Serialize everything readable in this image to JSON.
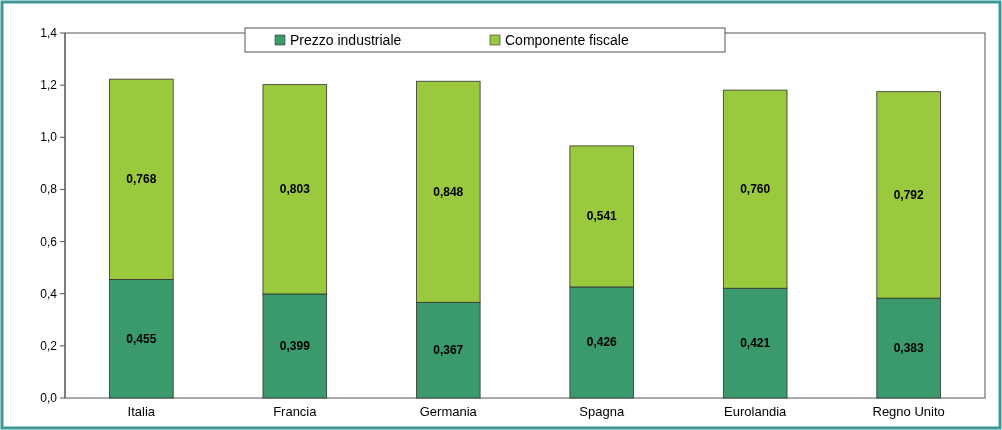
{
  "chart_data": {
    "type": "bar",
    "stacked": true,
    "categories": [
      "Italia",
      "Francia",
      "Germania",
      "Spagna",
      "Eurolandia",
      "Regno Unito"
    ],
    "series": [
      {
        "name": "Prezzo industriale",
        "color": "#3a9a6c",
        "values": [
          0.455,
          0.399,
          0.367,
          0.426,
          0.421,
          0.383
        ],
        "value_labels": [
          "0,455",
          "0,399",
          "0,367",
          "0,426",
          "0,421",
          "0,383"
        ]
      },
      {
        "name": "Componente fiscale",
        "color": "#9ac93e",
        "values": [
          0.768,
          0.803,
          0.848,
          0.541,
          0.76,
          0.792
        ],
        "value_labels": [
          "0,768",
          "0,803",
          "0,848",
          "0,541",
          "0,760",
          "0,792"
        ]
      }
    ],
    "ylim": [
      0,
      1.4
    ],
    "yticks": [
      {
        "value": 0,
        "label": "0,0"
      },
      {
        "value": 0.2,
        "label": "0,2"
      },
      {
        "value": 0.4,
        "label": "0,4"
      },
      {
        "value": 0.6,
        "label": "0,6"
      },
      {
        "value": 0.8,
        "label": "0,8"
      },
      {
        "value": 1,
        "label": "1,0"
      },
      {
        "value": 1.2,
        "label": "1,2"
      },
      {
        "value": 1.4,
        "label": "1,4"
      }
    ],
    "grid": false,
    "legend": "top"
  }
}
